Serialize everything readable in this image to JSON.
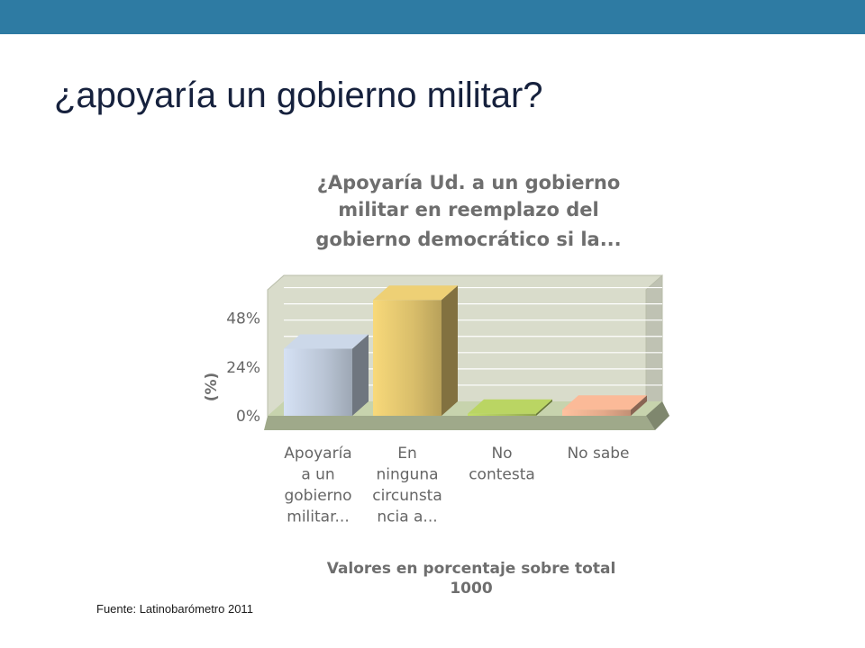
{
  "slide": {
    "title": "¿apoyaría un gobierno militar?",
    "source": "Fuente: Latinobarómetro 2011"
  },
  "colors": {
    "top_bar": "#2e7ba3",
    "slide_title": "#16213d",
    "chart_text": "#666666",
    "plot_wall": "#d9dccb",
    "floor": "#9fa98a",
    "bars": [
      "#b9c4d4",
      "#d8bd6a",
      "#a9c25a",
      "#e4a98a"
    ]
  },
  "chart_data": {
    "type": "bar",
    "title_lines": [
      "¿Apoyaría Ud. a un gobierno",
      "militar en reemplazo del",
      "gobierno democrático si la..."
    ],
    "categories": [
      [
        "Apoyaría",
        "a un",
        "gobierno",
        "militar..."
      ],
      [
        "En",
        "ninguna",
        "circunsta",
        "ncia a..."
      ],
      [
        "No",
        "contesta"
      ],
      [
        "No sabe"
      ]
    ],
    "values": [
      33,
      57,
      1,
      3
    ],
    "ylabel": "(%)",
    "yticks": [
      "0%",
      "24%",
      "48%"
    ],
    "ytick_values": [
      0,
      24,
      48
    ],
    "ylim": [
      0,
      62
    ],
    "grid": true,
    "note_lines": [
      "Valores en porcentaje sobre total",
      "1000"
    ]
  }
}
